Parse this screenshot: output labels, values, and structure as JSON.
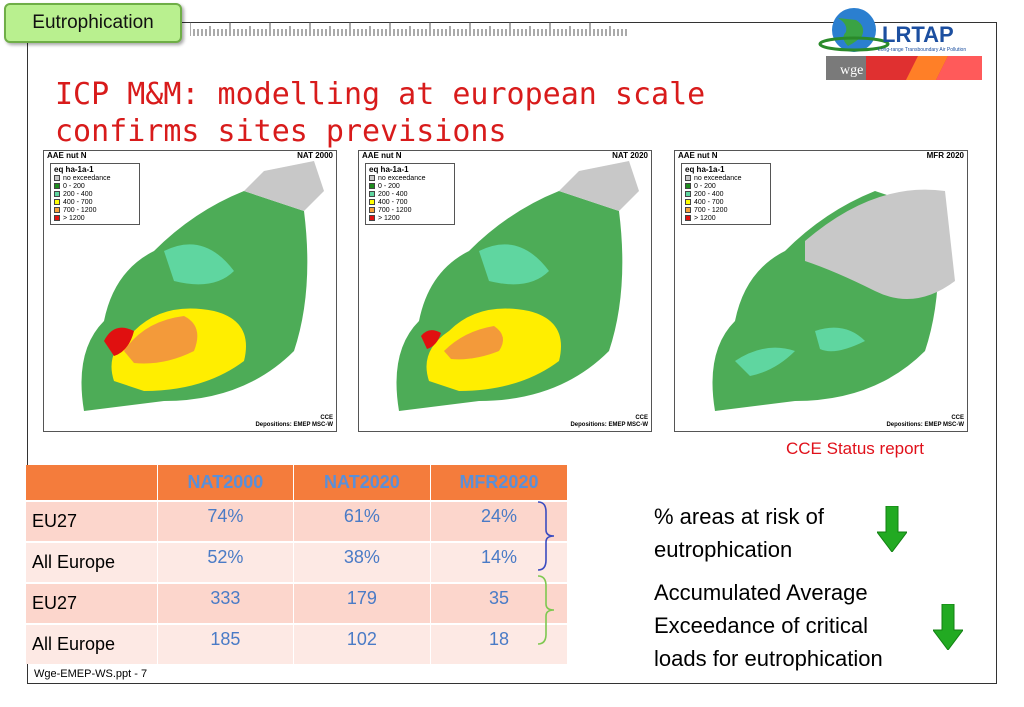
{
  "tag": "Eutrophication",
  "title": "ICP M&M: modelling at european scale confirms sites previsions",
  "logo": {
    "name": "LRTAP",
    "subtitle": "Long-range Transboundary Air Pollution",
    "badge": "wge"
  },
  "maps": [
    {
      "left_header": "AAE nut N",
      "right_header": "NAT 2000",
      "footer1": "CCE",
      "footer2": "Depositions: EMEP MSC-W"
    },
    {
      "left_header": "AAE nut N",
      "right_header": "NAT 2020",
      "footer1": "CCE",
      "footer2": "Depositions: EMEP MSC-W"
    },
    {
      "left_header": "AAE nut N",
      "right_header": "MFR 2020",
      "footer1": "CCE",
      "footer2": "Depositions: EMEP MSC-W"
    }
  ],
  "legend": {
    "title": "eq ha-1a-1",
    "items": [
      {
        "label": "no exceedance",
        "color": "#c8c8c8"
      },
      {
        "label": "0 - 200",
        "color": "#1e8c1e"
      },
      {
        "label": "200 - 400",
        "color": "#5fd6a0"
      },
      {
        "label": "400 - 700",
        "color": "#ffff00"
      },
      {
        "label": "700 - 1200",
        "color": "#f7a13a"
      },
      {
        "label": "> 1200",
        "color": "#e01010"
      }
    ]
  },
  "source": "CCE Status report",
  "table": {
    "headers": [
      "",
      "NAT2000",
      "NAT2020",
      "MFR2020"
    ],
    "rows": [
      [
        "EU27",
        "74%",
        "61%",
        "24%"
      ],
      [
        "All Europe",
        "52%",
        "38%",
        "14%"
      ],
      [
        "EU27",
        "333",
        "179",
        "35"
      ],
      [
        "All Europe",
        "185",
        "102",
        "18"
      ]
    ]
  },
  "notes": {
    "areas": [
      "% areas at risk of",
      "eutrophication"
    ],
    "aae": [
      "Accumulated Average",
      "Exceedance of critical",
      "loads for eutrophication"
    ]
  },
  "footer": "Wge-EMEP-WS.ppt - 7",
  "colors": {
    "title": "#d81b1b",
    "table_header": "#f47c3c",
    "arrow": "#22aa22"
  }
}
